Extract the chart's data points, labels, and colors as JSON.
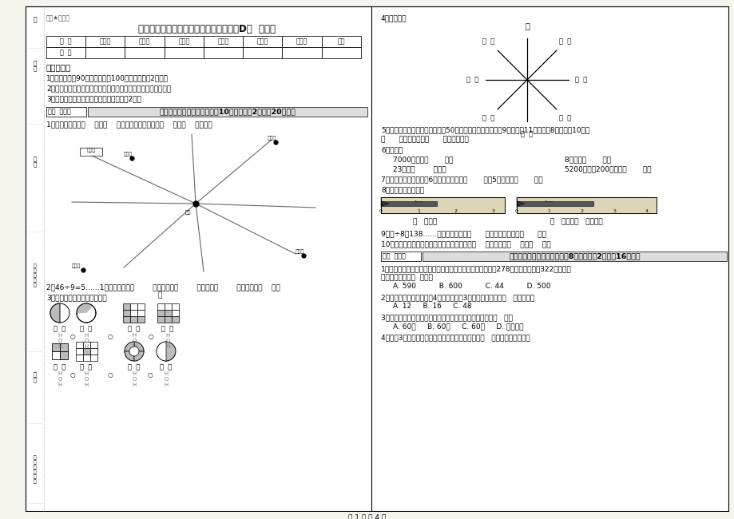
{
  "bg_color": "#ffffff",
  "page_bg": "#f7f6f0",
  "title": "实验小学三年级数学下学期自我检测试卷D卷  附答案",
  "subtitle_small": "绝密★启用前",
  "table_headers": [
    "题  号",
    "填空题",
    "选择题",
    "判断题",
    "计算题",
    "综合题",
    "应用题",
    "总分"
  ],
  "table_row": [
    "得  分",
    "",
    "",
    "",
    "",
    "",
    "",
    ""
  ],
  "notice_title": "考试须知：",
  "notice_items": [
    "1、考试时间：90分钟，满分为100分（含卷面分2分）。",
    "2、请首先按要求在试卷的指定位置填写您的姓名、班级、学号。",
    "3、不要在试卷上乱写乱画，卷面不整洁扣2分。"
  ],
  "footer": "第 1 页 共 4 页",
  "sidebar_texts": [
    "测",
    "学\n号",
    "姓\n名",
    "班\n级\n（\n班\n）",
    "学\n校",
    "乡\n镇\n（\n街\n道\n）"
  ]
}
